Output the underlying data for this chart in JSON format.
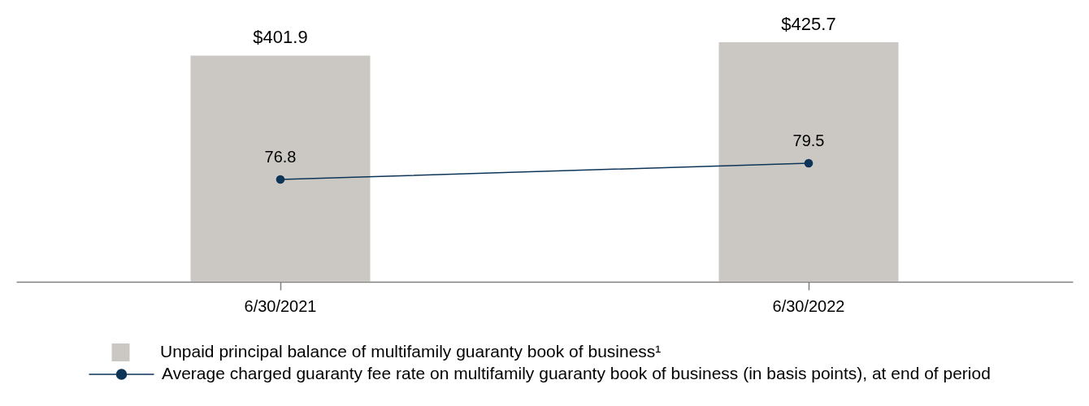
{
  "chart_data": {
    "type": "bar",
    "categories": [
      "6/30/2021",
      "6/30/2022"
    ],
    "series": [
      {
        "name": "Unpaid principal balance of multifamily guaranty book of business¹",
        "color": "#cbc8c3",
        "values": [
          401.9,
          425.7
        ],
        "value_labels": [
          "$401.9",
          "$425.7"
        ]
      },
      {
        "name": "Average charged guaranty fee rate on multifamily guaranty book of business (in basis points), at end of period",
        "type": "line",
        "axis": "y2",
        "color": "#0c3557",
        "values": [
          76.8,
          79.5
        ],
        "value_labels": [
          "76.8",
          "79.5"
        ]
      }
    ],
    "legend": "bottom",
    "marker": "circle",
    "tick_labels": "x"
  }
}
